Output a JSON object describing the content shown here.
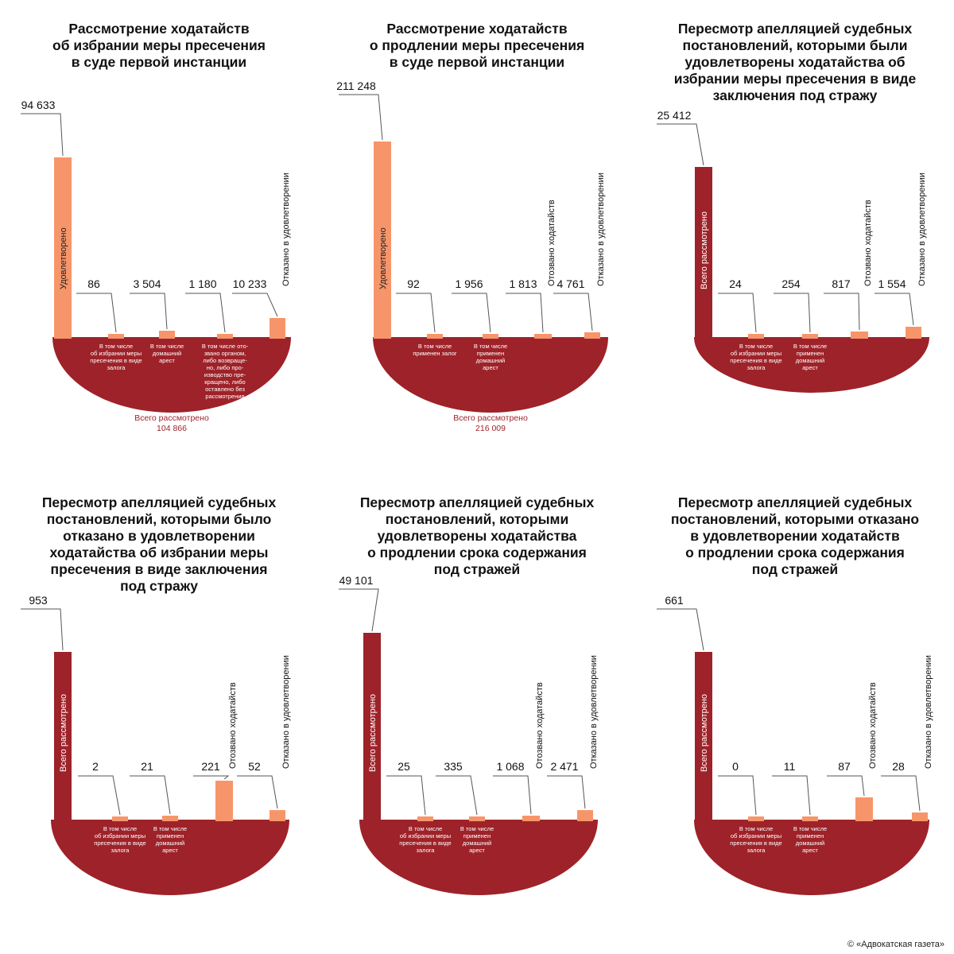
{
  "colors": {
    "bowl": "#9e2229",
    "bar_light": "#f7956a",
    "bar_dark": "#9e2229",
    "leader": "#555555",
    "text": "#111111",
    "total_text": "#9e2229"
  },
  "credit": "© «Адвокатская газета»",
  "chart_data": [
    {
      "type": "bar",
      "title": [
        "Рассмотрение ходатайств",
        "об избрании меры пресечения",
        "в суде первой инстанции"
      ],
      "main": {
        "value": 94633,
        "label_value": "94 633",
        "label": "Удовлетворено",
        "style": "light"
      },
      "items": [
        {
          "value": 86,
          "label_value": "86",
          "caption": [
            "В том числе",
            "об избрании меры",
            "пресечения в виде",
            "залога"
          ],
          "vlabel": ""
        },
        {
          "value": 3504,
          "label_value": "3 504",
          "caption": [
            "В том числе",
            "домашний",
            "арест"
          ],
          "vlabel": ""
        },
        {
          "value": 1180,
          "label_value": "1 180",
          "caption": [
            "В том числе ото-",
            "звано органом,",
            "либо возвраще-",
            "но, либо про-",
            "изводство пре-",
            "кращено, либо",
            "оставлено без",
            "рассмотрения"
          ],
          "vlabel": ""
        },
        {
          "value": 10233,
          "label_value": "10 233",
          "caption": [],
          "vlabel": "Отказано в удовлетворении"
        }
      ],
      "total": {
        "label": "Всего рассмотрено",
        "value": "104 866"
      }
    },
    {
      "type": "bar",
      "title": [
        "Рассмотрение ходатайств",
        "о продлении меры пресечения",
        "в суде первой инстанции"
      ],
      "main": {
        "value": 211248,
        "label_value": "211 248",
        "label": "Удовлетворено",
        "style": "light"
      },
      "items": [
        {
          "value": 92,
          "label_value": "92",
          "caption": [
            "В том числе",
            "применен залог"
          ],
          "vlabel": ""
        },
        {
          "value": 1956,
          "label_value": "1 956",
          "caption": [
            "В том числе",
            "применен",
            "домашний",
            "арест"
          ],
          "vlabel": ""
        },
        {
          "value": 1813,
          "label_value": "1 813",
          "caption": [],
          "vlabel": "Отозвано ходатайств"
        },
        {
          "value": 4761,
          "label_value": "4 761",
          "caption": [],
          "vlabel": "Отказано в удовлетворении"
        }
      ],
      "total": {
        "label": "Всего рассмотрено",
        "value": "216 009"
      }
    },
    {
      "type": "bar",
      "title": [
        "Пересмотр апелляцией судебных",
        "постановлений, которыми были",
        "удовлетворены ходатайства об",
        "избрании меры пресечения в виде",
        "заключения под стражу"
      ],
      "main": {
        "value": 25412,
        "label_value": "25 412",
        "label": "Всего рассмотрено",
        "style": "dark"
      },
      "items": [
        {
          "value": 24,
          "label_value": "24",
          "caption": [
            "В том числе",
            "об избрании меры",
            "пресечения в виде",
            "залога"
          ],
          "vlabel": ""
        },
        {
          "value": 254,
          "label_value": "254",
          "caption": [
            "В том числе",
            "применен",
            "домашний",
            "арест"
          ],
          "vlabel": ""
        },
        {
          "value": 817,
          "label_value": "817",
          "caption": [],
          "vlabel": "Отозвано ходатайств"
        },
        {
          "value": 1554,
          "label_value": "1 554",
          "caption": [],
          "vlabel": "Отказано в удовлетворении"
        }
      ],
      "total": null
    },
    {
      "type": "bar",
      "title": [
        "Пересмотр апелляцией судебных",
        "постановлений, которыми было",
        "отказано в удовлетворении",
        "ходатайства об избрании меры",
        "пресечения в виде заключения",
        "под стражу"
      ],
      "main": {
        "value": 953,
        "label_value": "953",
        "label": "Всего рассмотрено",
        "style": "dark"
      },
      "items": [
        {
          "value": 2,
          "label_value": "2",
          "caption": [
            "В том числе",
            "об избрании меры",
            "пресечения в виде",
            "залога"
          ],
          "vlabel": ""
        },
        {
          "value": 21,
          "label_value": "21",
          "caption": [
            "В том числе",
            "применен",
            "домашний",
            "арест"
          ],
          "vlabel": ""
        },
        {
          "value": 221,
          "label_value": "221",
          "caption": [],
          "vlabel": "Отозвано ходатайств"
        },
        {
          "value": 52,
          "label_value": "52",
          "caption": [],
          "vlabel": "Отказано в удовлетворении"
        }
      ],
      "total": null
    },
    {
      "type": "bar",
      "title": [
        "Пересмотр апелляцией судебных",
        "постановлений, которыми",
        "удовлетворены ходатайства",
        "о продлении срока содержания",
        "под стражей"
      ],
      "main": {
        "value": 49101,
        "label_value": "49 101",
        "label": "Всего рассмотрено",
        "style": "dark"
      },
      "items": [
        {
          "value": 25,
          "label_value": "25",
          "caption": [
            "В том числе",
            "об избрании меры",
            "пресечения в виде",
            "залога"
          ],
          "vlabel": ""
        },
        {
          "value": 335,
          "label_value": "335",
          "caption": [
            "В том числе",
            "применен",
            "домашний",
            "арест"
          ],
          "vlabel": ""
        },
        {
          "value": 1068,
          "label_value": "1 068",
          "caption": [],
          "vlabel": "Отозвано ходатайств"
        },
        {
          "value": 2471,
          "label_value": "2 471",
          "caption": [],
          "vlabel": "Отказано в удовлетворении"
        }
      ],
      "total": null
    },
    {
      "type": "bar",
      "title": [
        "Пересмотр апелляцией судебных",
        "постановлений, которыми отказано",
        "в удовлетворении ходатайств",
        "о продлении срока содержания",
        "под стражей"
      ],
      "main": {
        "value": 661,
        "label_value": "661",
        "label": "Всего рассмотрено",
        "style": "dark"
      },
      "items": [
        {
          "value": 0,
          "label_value": "0",
          "caption": [
            "В том числе",
            "об избрании меры",
            "пресечения в виде",
            "залога"
          ],
          "vlabel": ""
        },
        {
          "value": 11,
          "label_value": "11",
          "caption": [
            "В том числе",
            "применен",
            "домашний",
            "арест"
          ],
          "vlabel": ""
        },
        {
          "value": 87,
          "label_value": "87",
          "caption": [],
          "vlabel": "Отозвано ходатайств"
        },
        {
          "value": 28,
          "label_value": "28",
          "caption": [],
          "vlabel": "Отказано в удовлетворении"
        }
      ],
      "total": null
    }
  ]
}
